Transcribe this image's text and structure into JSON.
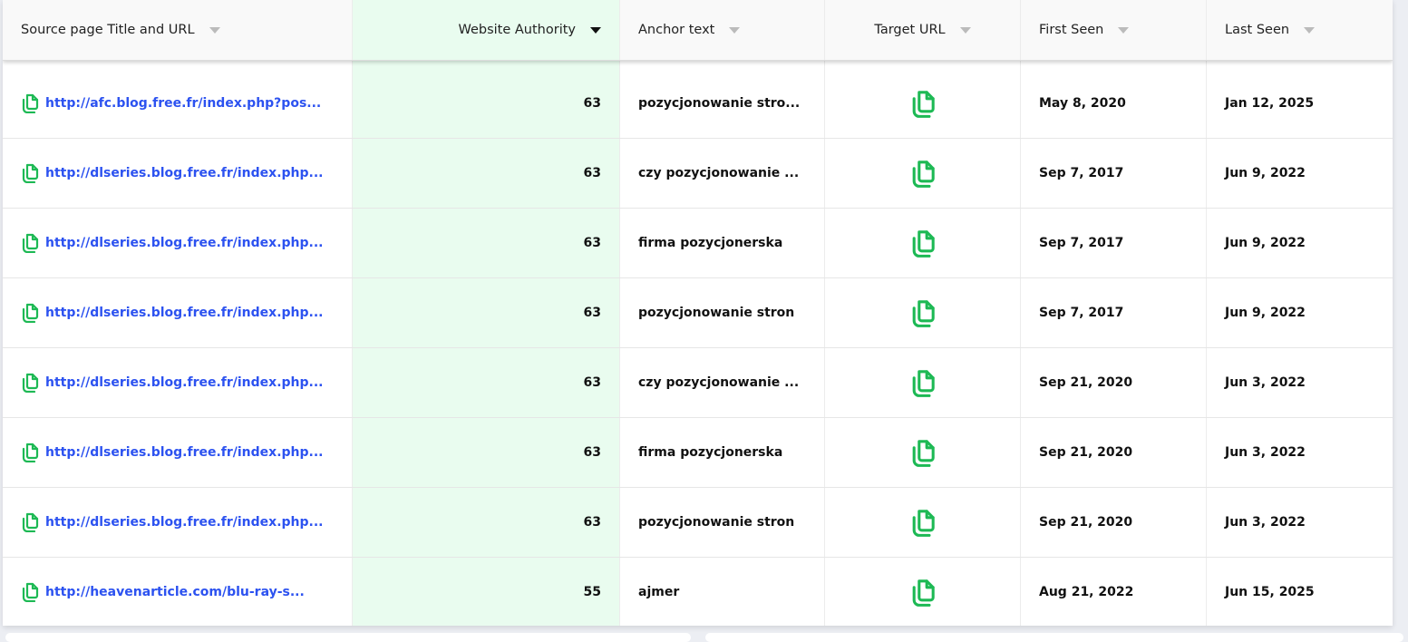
{
  "columns": [
    {
      "label": "Source page Title and URL",
      "sorted": false
    },
    {
      "label": "Website Authority",
      "sorted": true
    },
    {
      "label": "Anchor text",
      "sorted": false
    },
    {
      "label": "Target URL",
      "sorted": false
    },
    {
      "label": "First Seen",
      "sorted": false
    },
    {
      "label": "Last Seen",
      "sorted": false
    }
  ],
  "colors": {
    "link": "#2c52f0",
    "icon": "#1db954",
    "highlight_column": "#e9fcef"
  },
  "icons": {
    "source": "copy-document-icon",
    "target": "copy-document-icon",
    "sort": "caret-down-icon"
  },
  "rows": [
    {
      "source": "http://afc.blog.free.fr/index.php?pos...",
      "authority": "63",
      "anchor": "pozycjonowanie stro...",
      "first_seen": "May 8, 2020",
      "last_seen": "Jan 12, 2025"
    },
    {
      "source": "http://dlseries.blog.free.fr/index.php...",
      "authority": "63",
      "anchor": "czy pozycjonowanie ...",
      "first_seen": "Sep 7, 2017",
      "last_seen": "Jun 9, 2022"
    },
    {
      "source": "http://dlseries.blog.free.fr/index.php...",
      "authority": "63",
      "anchor": "firma pozycjonerska",
      "first_seen": "Sep 7, 2017",
      "last_seen": "Jun 9, 2022"
    },
    {
      "source": "http://dlseries.blog.free.fr/index.php...",
      "authority": "63",
      "anchor": "pozycjonowanie stron",
      "first_seen": "Sep 7, 2017",
      "last_seen": "Jun 9, 2022"
    },
    {
      "source": "http://dlseries.blog.free.fr/index.php...",
      "authority": "63",
      "anchor": "czy pozycjonowanie ...",
      "first_seen": "Sep 21, 2020",
      "last_seen": "Jun 3, 2022"
    },
    {
      "source": "http://dlseries.blog.free.fr/index.php...",
      "authority": "63",
      "anchor": "firma pozycjonerska",
      "first_seen": "Sep 21, 2020",
      "last_seen": "Jun 3, 2022"
    },
    {
      "source": "http://dlseries.blog.free.fr/index.php...",
      "authority": "63",
      "anchor": "pozycjonowanie stron",
      "first_seen": "Sep 21, 2020",
      "last_seen": "Jun 3, 2022"
    },
    {
      "source": "http://heavenarticle.com/blu-ray-s...",
      "authority": "55",
      "anchor": "ajmer",
      "first_seen": "Aug 21, 2022",
      "last_seen": "Jun 15, 2025"
    }
  ]
}
